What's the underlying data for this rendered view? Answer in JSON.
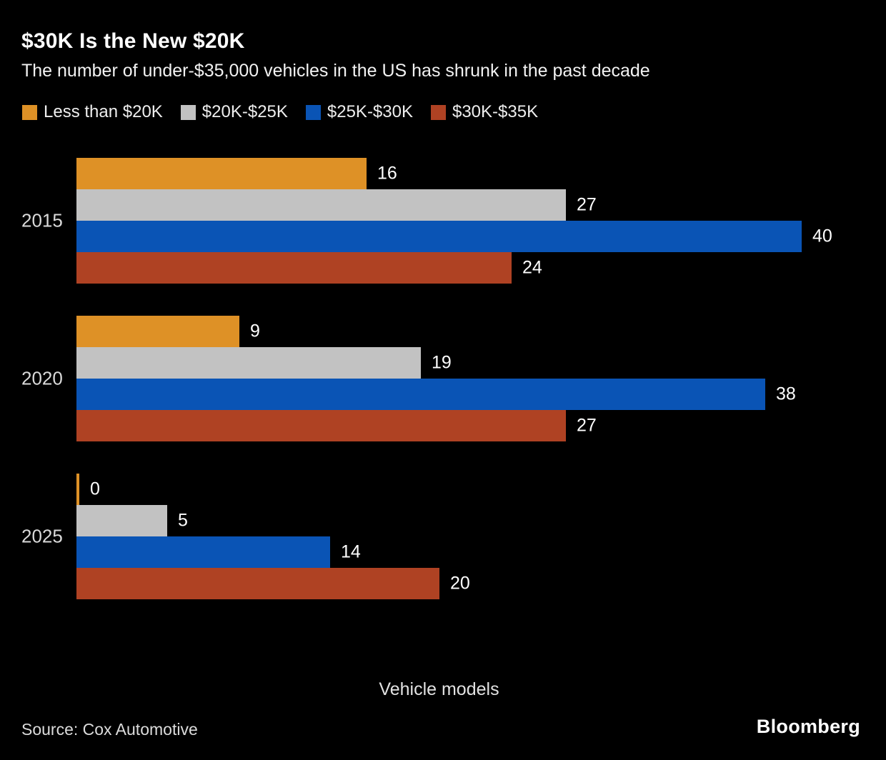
{
  "header": {
    "title": "$30K Is the New $20K",
    "subtitle": "The number of under-$35,000 vehicles in the US has shrunk in the past decade"
  },
  "chart_data": {
    "type": "bar",
    "orientation": "horizontal",
    "categories": [
      "2015",
      "2020",
      "2025"
    ],
    "series": [
      {
        "name": "Less than $20K",
        "color": "#DE9126",
        "values": [
          16,
          9,
          0
        ]
      },
      {
        "name": "$20K-$25K",
        "color": "#C2C2C2",
        "values": [
          27,
          19,
          5
        ]
      },
      {
        "name": "$25K-$30K",
        "color": "#0A54B5",
        "values": [
          40,
          38,
          14
        ]
      },
      {
        "name": "$30K-$35K",
        "color": "#AF4223",
        "values": [
          24,
          27,
          20
        ]
      }
    ],
    "xlabel": "Vehicle models",
    "xlim": [
      0,
      40
    ],
    "value_labels": true,
    "legend_position": "top",
    "grid": false,
    "background": "#000000"
  },
  "footer": {
    "source": "Source: Cox Automotive",
    "brand": "Bloomberg"
  }
}
